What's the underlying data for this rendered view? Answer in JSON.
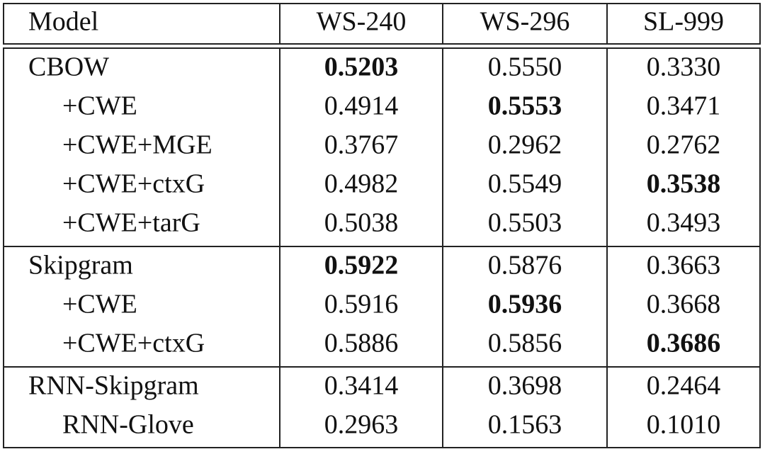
{
  "table": {
    "header": [
      "Model",
      "WS-240",
      "WS-296",
      "SL-999"
    ],
    "groups": [
      {
        "rows": [
          [
            "CBOW",
            {
              "text": "0.5203",
              "bold": true
            },
            "0.5550",
            "0.3330"
          ],
          [
            "+CWE",
            "0.4914",
            {
              "text": "0.5553",
              "bold": true
            },
            "0.3471"
          ],
          [
            "+CWE+MGE",
            "0.3767",
            "0.2962",
            "0.2762"
          ],
          [
            "+CWE+ctxG",
            "0.4982",
            "0.5549",
            {
              "text": "0.3538",
              "bold": true
            }
          ],
          [
            "+CWE+tarG",
            "0.5038",
            "0.5503",
            "0.3493"
          ]
        ]
      },
      {
        "rows": [
          [
            "Skipgram",
            {
              "text": "0.5922",
              "bold": true
            },
            "0.5876",
            "0.3663"
          ],
          [
            "+CWE",
            "0.5916",
            {
              "text": "0.5936",
              "bold": true
            },
            "0.3668"
          ],
          [
            "+CWE+ctxG",
            "0.5886",
            "0.5856",
            {
              "text": "0.3686",
              "bold": true
            }
          ]
        ]
      },
      {
        "rows": [
          [
            "RNN-Skipgram",
            "0.3414",
            "0.3698",
            "0.2464"
          ],
          [
            "RNN-Glove",
            "0.2963",
            "0.1563",
            "0.1010"
          ]
        ]
      }
    ]
  }
}
